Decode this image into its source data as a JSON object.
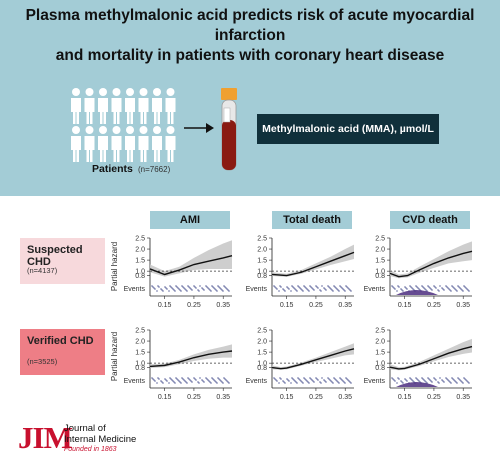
{
  "header": {
    "title_line1": "Plasma methylmalonic acid predicts risk of acute myocardial infarction",
    "title_line2": "and mortality in patients with coronary heart disease",
    "patients_label": "Patients",
    "patients_n": "(n=7662)",
    "mma_label": "Methylmalonic acid (MMA), µmol/L"
  },
  "rows": [
    {
      "name": "Suspected CHD",
      "n": "(n=4137)",
      "color": "#f7d9dc"
    },
    {
      "name": "Verified CHD",
      "n": "(n=3525)",
      "color": "#ee7e86"
    }
  ],
  "columns": [
    "AMI",
    "Total death",
    "CVD death"
  ],
  "y_axis_label": "Partial hazard",
  "events_label": "Events",
  "colors": {
    "header_bg": "#a3ccd6",
    "dark_box": "#10303b",
    "curve": "#111111",
    "ci_band": "#c9c9c9",
    "event_dots": "#27327a",
    "cvd_density": "#4b2d7f",
    "logo_red": "#c8102e"
  },
  "logo": {
    "mark": "JIM",
    "line1": "Journal of",
    "line2": "Internal Medicine",
    "founded": "Founded in 1863"
  },
  "chart_data": [
    {
      "type": "line",
      "row": "Suspected CHD",
      "column": "AMI",
      "x": [
        0.1,
        0.15,
        0.2,
        0.25,
        0.3,
        0.35,
        0.38
      ],
      "y": [
        1.1,
        0.85,
        1.05,
        1.3,
        1.45,
        1.6,
        1.7
      ],
      "ci_upper": [
        1.3,
        1.0,
        1.2,
        1.6,
        1.95,
        2.25,
        2.4
      ],
      "ci_lower": [
        0.95,
        0.75,
        0.9,
        1.05,
        1.1,
        1.1,
        1.1
      ],
      "xticks": [
        0.15,
        0.25,
        0.35
      ],
      "yticks": [
        0.8,
        1.0,
        1.5,
        2.0,
        2.5
      ],
      "ylim": [
        0.6,
        2.5
      ],
      "xlim": [
        0.1,
        0.38
      ],
      "reference_line": 1.0
    },
    {
      "type": "line",
      "row": "Suspected CHD",
      "column": "Total death",
      "x": [
        0.1,
        0.15,
        0.2,
        0.25,
        0.3,
        0.35,
        0.38
      ],
      "y": [
        0.85,
        0.8,
        0.95,
        1.2,
        1.45,
        1.7,
        1.85
      ],
      "ci_upper": [
        0.95,
        0.88,
        1.05,
        1.35,
        1.65,
        2.0,
        2.2
      ],
      "ci_lower": [
        0.78,
        0.74,
        0.88,
        1.08,
        1.28,
        1.45,
        1.55
      ],
      "xticks": [
        0.15,
        0.25,
        0.35
      ],
      "yticks": [
        0.8,
        1.0,
        1.5,
        2.0,
        2.5
      ],
      "ylim": [
        0.6,
        2.5
      ],
      "xlim": [
        0.1,
        0.38
      ],
      "reference_line": 1.0
    },
    {
      "type": "line",
      "row": "Suspected CHD",
      "column": "CVD death",
      "x": [
        0.1,
        0.13,
        0.16,
        0.2,
        0.25,
        0.3,
        0.35,
        0.38
      ],
      "y": [
        0.9,
        0.75,
        0.8,
        1.05,
        1.35,
        1.6,
        1.8,
        1.9
      ],
      "ci_upper": [
        1.05,
        0.85,
        0.9,
        1.2,
        1.55,
        1.9,
        2.2,
        2.35
      ],
      "ci_lower": [
        0.78,
        0.68,
        0.72,
        0.92,
        1.15,
        1.35,
        1.45,
        1.5
      ],
      "xticks": [
        0.15,
        0.25,
        0.35
      ],
      "yticks": [
        0.8,
        1.0,
        1.5,
        2.0,
        2.5
      ],
      "ylim": [
        0.6,
        2.5
      ],
      "xlim": [
        0.1,
        0.38
      ],
      "reference_line": 1.0
    },
    {
      "type": "line",
      "row": "Verified CHD",
      "column": "AMI",
      "x": [
        0.1,
        0.15,
        0.2,
        0.25,
        0.3,
        0.35,
        0.38
      ],
      "y": [
        0.85,
        0.9,
        1.05,
        1.25,
        1.4,
        1.5,
        1.55
      ],
      "ci_upper": [
        0.95,
        0.98,
        1.15,
        1.4,
        1.6,
        1.75,
        1.85
      ],
      "ci_lower": [
        0.78,
        0.82,
        0.95,
        1.1,
        1.2,
        1.25,
        1.25
      ],
      "xticks": [
        0.15,
        0.25,
        0.35
      ],
      "yticks": [
        0.8,
        1.0,
        1.5,
        2.0,
        2.5
      ],
      "ylim": [
        0.6,
        2.5
      ],
      "xlim": [
        0.1,
        0.38
      ],
      "reference_line": 1.0
    },
    {
      "type": "line",
      "row": "Verified CHD",
      "column": "Total death",
      "x": [
        0.1,
        0.13,
        0.15,
        0.2,
        0.25,
        0.3,
        0.35,
        0.38
      ],
      "y": [
        0.8,
        0.75,
        0.78,
        0.95,
        1.15,
        1.35,
        1.55,
        1.65
      ],
      "ci_upper": [
        0.9,
        0.82,
        0.85,
        1.03,
        1.25,
        1.5,
        1.75,
        1.9
      ],
      "ci_lower": [
        0.72,
        0.7,
        0.72,
        0.88,
        1.05,
        1.2,
        1.35,
        1.4
      ],
      "xticks": [
        0.15,
        0.25,
        0.35
      ],
      "yticks": [
        0.8,
        1.0,
        1.5,
        2.0,
        2.5
      ],
      "ylim": [
        0.6,
        2.5
      ],
      "xlim": [
        0.1,
        0.38
      ],
      "reference_line": 1.0
    },
    {
      "type": "line",
      "row": "Verified CHD",
      "column": "CVD death",
      "x": [
        0.1,
        0.13,
        0.15,
        0.2,
        0.25,
        0.3,
        0.35,
        0.38
      ],
      "y": [
        0.82,
        0.74,
        0.76,
        0.95,
        1.2,
        1.45,
        1.65,
        1.75
      ],
      "ci_upper": [
        0.95,
        0.82,
        0.84,
        1.05,
        1.35,
        1.65,
        1.95,
        2.1
      ],
      "ci_lower": [
        0.72,
        0.68,
        0.7,
        0.87,
        1.08,
        1.28,
        1.42,
        1.48
      ],
      "xticks": [
        0.15,
        0.25,
        0.35
      ],
      "yticks": [
        0.8,
        1.0,
        1.5,
        2.0,
        2.5
      ],
      "ylim": [
        0.6,
        2.5
      ],
      "xlim": [
        0.1,
        0.38
      ],
      "reference_line": 1.0
    }
  ]
}
